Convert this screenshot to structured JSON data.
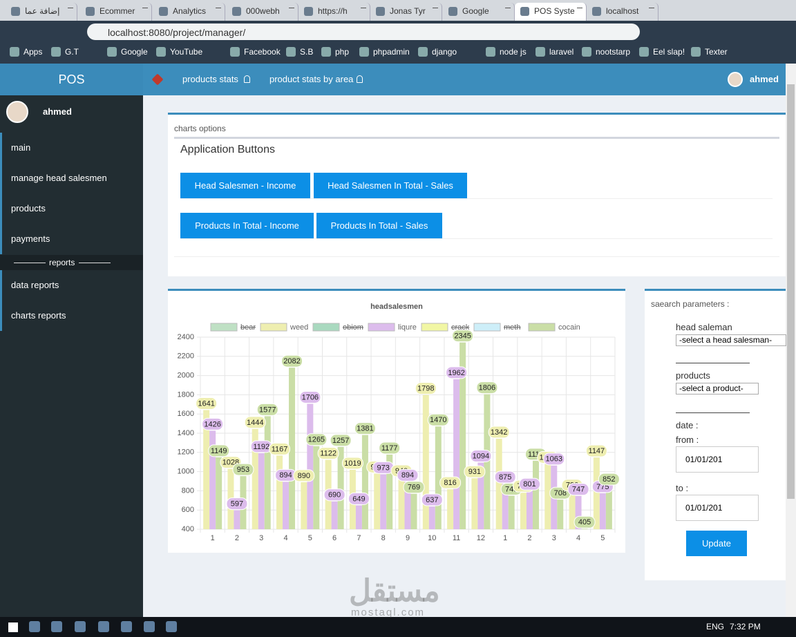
{
  "browser": {
    "tabs": [
      "إضافة عما",
      "Ecommer",
      "Analytics",
      "000webh",
      "https://h",
      "Jonas Tyr",
      "Google",
      "POS Syste",
      "localhost"
    ],
    "url": "localhost:8080/project/manager/",
    "bookmarks": [
      "Apps",
      "G.T",
      "Google",
      "YouTube",
      "Facebook",
      "S.B",
      "php",
      "phpadmin",
      "django",
      "node js",
      "laravel",
      "nootstarp",
      "Eel slap!",
      "Texter"
    ]
  },
  "app": {
    "brand": "POS",
    "nav": [
      "products stats",
      "product stats by area"
    ],
    "nav_user": "ahmed",
    "sidebar_user": "ahmed",
    "menu": [
      "main",
      "manage head salesmen",
      "products",
      "payments"
    ],
    "section": "reports",
    "report_menu": [
      "data reports",
      "charts reports"
    ]
  },
  "options": {
    "title": "charts options",
    "heading": "Application Buttons",
    "buttons": [
      [
        "Head Salesmen - Income",
        "Head Salesmen In Total - Sales"
      ],
      [
        "Products In Total - Income",
        "Products In Total - Sales"
      ]
    ]
  },
  "chart_data": {
    "type": "bar",
    "title": "headsalesmen",
    "categories": [
      "1",
      "2",
      "3",
      "4",
      "5",
      "6",
      "7",
      "8",
      "9",
      "10",
      "11",
      "12",
      "1",
      "2",
      "3",
      "4",
      "5"
    ],
    "series": [
      {
        "name": "bear",
        "color": "#bfe0c4",
        "hidden": true
      },
      {
        "name": "weed",
        "color": "#eeeeb0",
        "values": [
          1641,
          1028,
          1444,
          1167,
          890,
          1122,
          1019,
          980,
          940,
          1798,
          816,
          931,
          1342,
          780,
          1080,
          790,
          1147
        ]
      },
      {
        "name": "obiom",
        "color": "#a9d9bf",
        "hidden": true
      },
      {
        "name": "liqure",
        "color": "#dcbcec",
        "values": [
          1426,
          597,
          1192,
          894,
          1706,
          690,
          649,
          973,
          894,
          637,
          1962,
          1094,
          875,
          801,
          1063,
          747,
          775
        ]
      },
      {
        "name": "crack",
        "color": "#f1f6a4",
        "hidden": true
      },
      {
        "name": "meth",
        "color": "#cdeef8",
        "hidden": true
      },
      {
        "name": "cocain",
        "color": "#cadea6",
        "values": [
          1149,
          953,
          1577,
          2082,
          1265,
          1257,
          1381,
          1177,
          769,
          1470,
          2345,
          1806,
          749,
          1113,
          708,
          405,
          852
        ]
      }
    ],
    "ylim": [
      400,
      2400
    ],
    "yticks": [
      400,
      600,
      800,
      1000,
      1200,
      1400,
      1600,
      1800,
      2000,
      2200,
      2400
    ],
    "grid": true
  },
  "search": {
    "title": "saearch parameters :",
    "salesman_label": "head saleman",
    "salesman_select": "-select a head salesman-",
    "products_label": "products",
    "products_select": "-select a product-",
    "date_label": "date :",
    "from_label": "from :",
    "from_value": "01/01/201",
    "to_label": "to :",
    "to_value": "01/01/201",
    "button": "Update"
  },
  "watermark": {
    "arabic": "مستقل",
    "latin": "mostaql.com"
  },
  "taskbar": {
    "lang": "ENG",
    "time": "7:32 PM"
  }
}
